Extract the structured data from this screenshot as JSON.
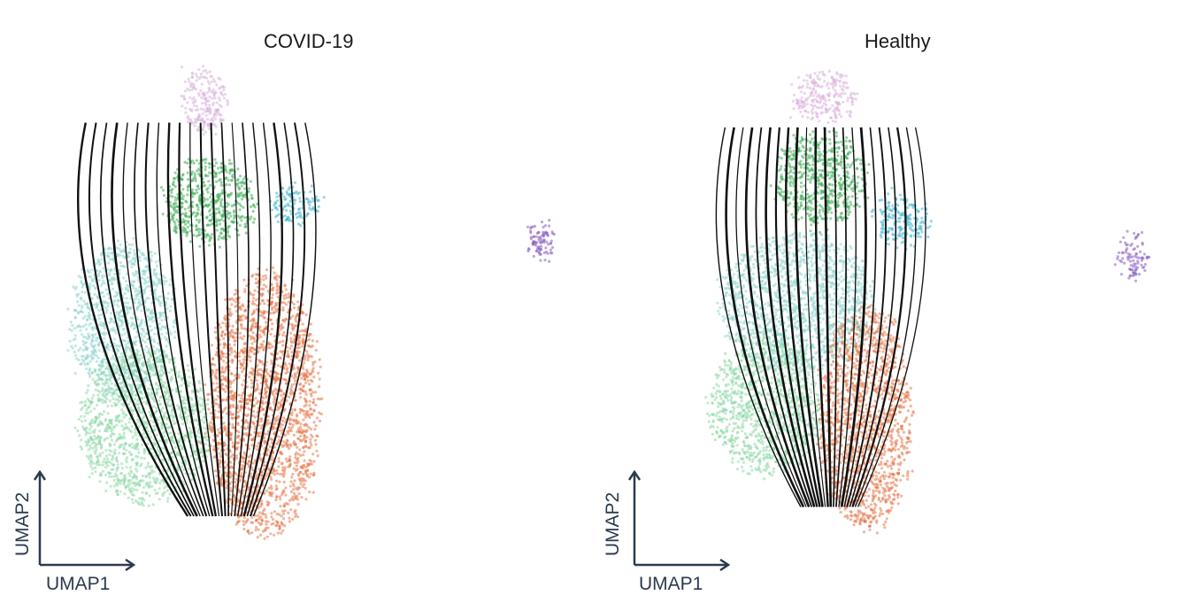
{
  "chart_data": [
    {
      "type": "scatter",
      "title": "COVID-19",
      "xlabel": "UMAP1",
      "ylabel": "UMAP2",
      "grid": false,
      "legend": "none",
      "clusters": [
        {
          "color": "#d9b3dc",
          "x": [
            -0.8,
            0.2
          ],
          "y": [
            4.2,
            5.6
          ]
        },
        {
          "color": "#3fae5a",
          "x": [
            -1.2,
            0.8
          ],
          "y": [
            1.8,
            3.6
          ]
        },
        {
          "color": "#3fb4d0",
          "x": [
            1.2,
            2.2
          ],
          "y": [
            2.2,
            3.0
          ]
        },
        {
          "color": "#8fd6cf",
          "x": [
            -3.2,
            -1.0
          ],
          "y": [
            -1.5,
            1.8
          ]
        },
        {
          "color": "#8fd9a8",
          "x": [
            -3.0,
            -0.2
          ],
          "y": [
            -3.8,
            -0.5
          ]
        },
        {
          "color": "#e8784a",
          "x": [
            -0.2,
            2.2
          ],
          "y": [
            -4.6,
            1.2
          ]
        },
        {
          "color": "#8b5fbf",
          "x": [
            6.8,
            7.3
          ],
          "y": [
            1.5,
            2.2
          ]
        }
      ]
    },
    {
      "type": "scatter",
      "title": "Healthy",
      "xlabel": "UMAP1",
      "ylabel": "UMAP2",
      "grid": false,
      "legend": "none",
      "clusters": [
        {
          "color": "#d9b3dc",
          "x": [
            -0.6,
            0.8
          ],
          "y": [
            4.4,
            5.5
          ]
        },
        {
          "color": "#3fae5a",
          "x": [
            -1.0,
            1.0
          ],
          "y": [
            2.2,
            4.2
          ]
        },
        {
          "color": "#3fb4d0",
          "x": [
            1.2,
            2.4
          ],
          "y": [
            1.8,
            2.8
          ]
        },
        {
          "color": "#8fd6cf",
          "x": [
            -2.2,
            1.2
          ],
          "y": [
            -1.0,
            2.0
          ]
        },
        {
          "color": "#8fd9a8",
          "x": [
            -2.4,
            0.0
          ],
          "y": [
            -3.2,
            -0.2
          ]
        },
        {
          "color": "#e8784a",
          "x": [
            0.0,
            2.0
          ],
          "y": [
            -4.4,
            0.4
          ]
        },
        {
          "color": "#8b5fbf",
          "x": [
            6.6,
            7.2
          ],
          "y": [
            1.0,
            2.0
          ]
        }
      ]
    }
  ]
}
